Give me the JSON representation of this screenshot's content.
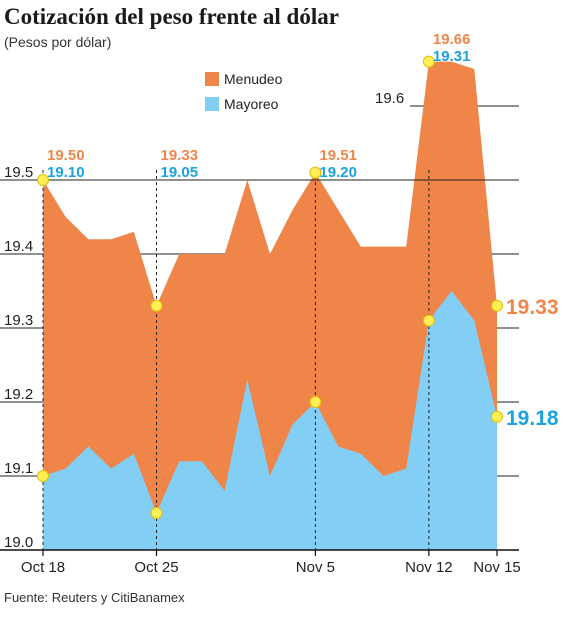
{
  "chart_data": {
    "type": "area",
    "title": "Cotización del peso frente al dólar",
    "subtitle": "(Pesos por dólar)",
    "source": "Fuente: Reuters y CitiBanamex",
    "ylim": [
      19.0,
      19.7
    ],
    "yticks": [
      "19.0",
      "19.1",
      "19.2",
      "19.3",
      "19.4",
      "19.5",
      "19.6"
    ],
    "xtick_labels": [
      {
        "label": "Oct 18",
        "index": 0
      },
      {
        "label": "Oct 25",
        "index": 5
      },
      {
        "label": "Nov 5",
        "index": 12
      },
      {
        "label": "Nov 12",
        "index": 17
      },
      {
        "label": "Nov 15",
        "index": 20
      }
    ],
    "series": [
      {
        "name": "Menudeo",
        "color": "#f0854a",
        "values": [
          19.5,
          19.45,
          19.42,
          19.42,
          19.43,
          19.33,
          19.4,
          19.4,
          19.4,
          19.5,
          19.4,
          19.46,
          19.51,
          19.46,
          19.41,
          19.41,
          19.41,
          19.66,
          19.66,
          19.65,
          19.33
        ]
      },
      {
        "name": "Mayoreo",
        "color": "#83cef4",
        "values": [
          19.1,
          19.11,
          19.14,
          19.11,
          19.13,
          19.05,
          19.12,
          19.12,
          19.08,
          19.23,
          19.1,
          19.17,
          19.2,
          19.14,
          19.13,
          19.1,
          19.11,
          19.31,
          19.35,
          19.31,
          19.18
        ]
      }
    ],
    "highlights": [
      {
        "index": 0,
        "menudeo": "19.50",
        "mayoreo": "19.10"
      },
      {
        "index": 5,
        "menudeo": "19.33",
        "mayoreo": "19.05"
      },
      {
        "index": 12,
        "menudeo": "19.51",
        "mayoreo": "19.20"
      },
      {
        "index": 17,
        "menudeo": "19.66",
        "mayoreo": "19.31"
      },
      {
        "index": 20,
        "menudeo": "19.33",
        "mayoreo": "19.18",
        "final": true
      }
    ],
    "legend_position": "top-left",
    "grid": true
  }
}
